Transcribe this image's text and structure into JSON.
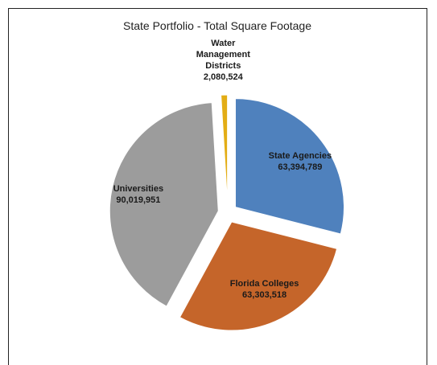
{
  "chart_data": {
    "type": "pie",
    "title": "State Portfolio - Total Square Footage",
    "categories": [
      "State Agencies",
      "Florida Colleges",
      "Universities",
      "Water Management Districts"
    ],
    "values": [
      63394789,
      63303518,
      90019951,
      2080524
    ],
    "value_labels": [
      "63,394,789",
      "63,303,518",
      "90,019,951",
      "2,080,524"
    ],
    "colors": [
      "#4f81bd",
      "#c5652a",
      "#9c9c9c",
      "#e3ad15"
    ]
  }
}
